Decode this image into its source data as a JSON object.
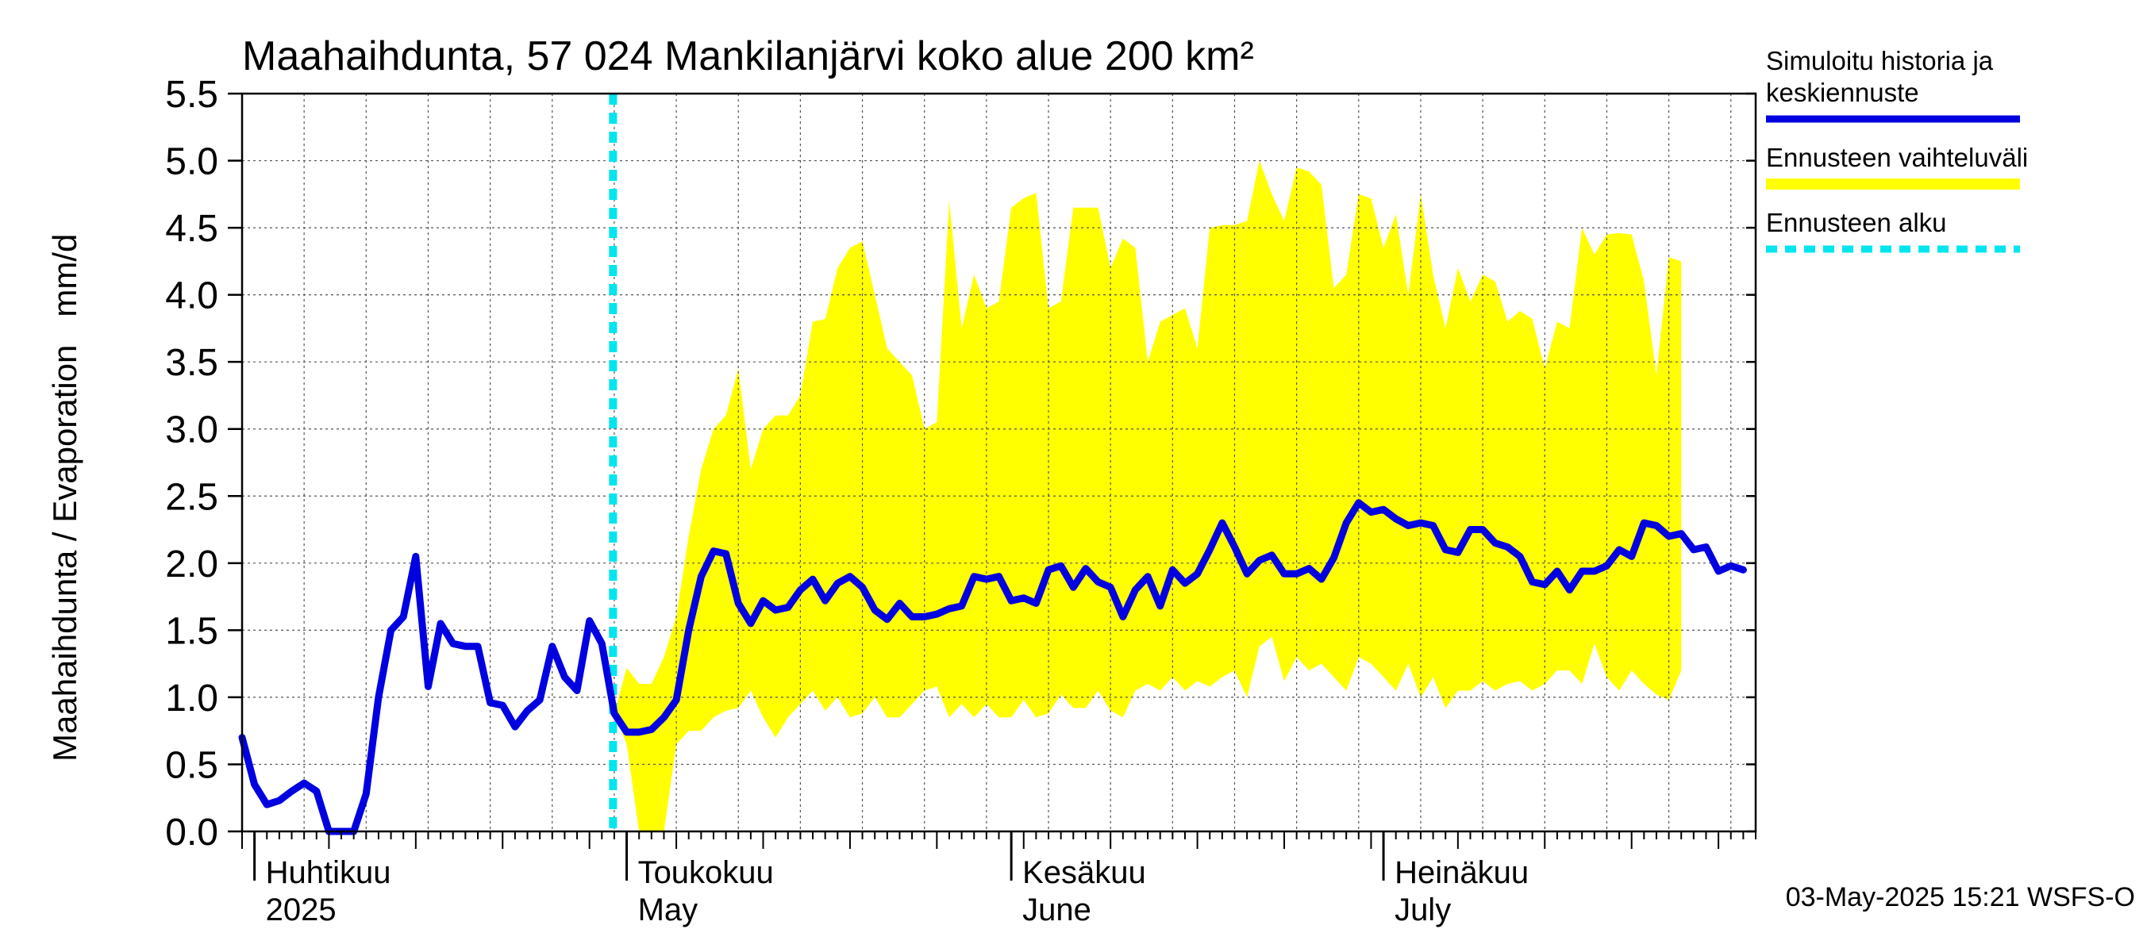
{
  "chart_data": {
    "type": "area",
    "title": "Maahaihdunta, 57 024 Mankilanjärvi koko alue 200 km²",
    "ylabel": "Maahaihdunta / Evaporation   mm/d",
    "ylim": [
      0,
      5.5
    ],
    "yticks": [
      "0.0",
      "0.5",
      "1.0",
      "1.5",
      "2.0",
      "2.5",
      "3.0",
      "3.5",
      "4.0",
      "4.5",
      "5.0",
      "5.5"
    ],
    "x_start": "2025-03-31",
    "x_end": "2025-07-31",
    "month_labels": [
      {
        "date": "2025-04-01",
        "fi": "Huhtikuu",
        "en": "2025"
      },
      {
        "date": "2025-05-01",
        "fi": "Toukokuu",
        "en": "May"
      },
      {
        "date": "2025-06-01",
        "fi": "Kesäkuu",
        "en": "June"
      },
      {
        "date": "2025-07-01",
        "fi": "Heinäkuu",
        "en": "July"
      }
    ],
    "grid": true,
    "legend_position": "right",
    "forecast_start": "2025-04-30",
    "series": [
      {
        "name": "Simuloitu historia ja keskiennuste",
        "color": "#0000e0",
        "start_date": "2025-03-31",
        "values": [
          0.7,
          0.35,
          0.2,
          0.23,
          0.3,
          0.36,
          0.3,
          0.0,
          0.0,
          0.0,
          0.28,
          1.0,
          1.5,
          1.6,
          2.05,
          1.08,
          1.55,
          1.4,
          1.38,
          1.38,
          0.96,
          0.94,
          0.78,
          0.9,
          0.98,
          1.38,
          1.15,
          1.05,
          1.57,
          1.4,
          0.88,
          0.74,
          0.74,
          0.76,
          0.85,
          0.98,
          1.5,
          1.9,
          2.09,
          2.07,
          1.7,
          1.55,
          1.72,
          1.65,
          1.67,
          1.8,
          1.88,
          1.72,
          1.85,
          1.9,
          1.82,
          1.65,
          1.58,
          1.7,
          1.6,
          1.6,
          1.62,
          1.66,
          1.68,
          1.9,
          1.88,
          1.9,
          1.72,
          1.74,
          1.7,
          1.95,
          1.98,
          1.82,
          1.96,
          1.86,
          1.82,
          1.6,
          1.8,
          1.9,
          1.68,
          1.95,
          1.85,
          1.92,
          2.1,
          2.3,
          2.12,
          1.92,
          2.02,
          2.06,
          1.92,
          1.92,
          1.96,
          1.88,
          2.04,
          2.3,
          2.45,
          2.38,
          2.4,
          2.33,
          2.28,
          2.3,
          2.28,
          2.1,
          2.08,
          2.25,
          2.25,
          2.15,
          2.12,
          2.05,
          1.86,
          1.84,
          1.94,
          1.8,
          1.94,
          1.94,
          1.98,
          2.1,
          2.05,
          2.3,
          2.28,
          2.2,
          2.22,
          2.1,
          2.12,
          1.94,
          1.98,
          1.95
        ]
      },
      {
        "name": "Ennusteen vaihteluväli",
        "color": "#ffff00",
        "start_date": "2025-04-30",
        "upper": [
          0.88,
          1.22,
          1.1,
          1.1,
          1.3,
          1.6,
          2.2,
          2.7,
          3.0,
          3.1,
          3.45,
          2.7,
          3.0,
          3.1,
          3.1,
          3.25,
          3.8,
          3.82,
          4.2,
          4.35,
          4.4,
          4.0,
          3.6,
          3.5,
          3.4,
          3.0,
          3.05,
          4.7,
          3.75,
          4.15,
          3.9,
          3.95,
          4.65,
          4.72,
          4.76,
          3.9,
          3.95,
          4.65,
          4.65,
          4.65,
          4.2,
          4.42,
          4.35,
          3.5,
          3.8,
          3.85,
          3.9,
          3.6,
          4.5,
          4.52,
          4.52,
          4.55,
          5.0,
          4.75,
          4.55,
          4.95,
          4.92,
          4.82,
          4.05,
          4.15,
          4.75,
          4.72,
          4.35,
          4.6,
          4.0,
          4.75,
          4.15,
          3.75,
          4.2,
          3.95,
          4.15,
          4.1,
          3.8,
          3.88,
          3.82,
          3.45,
          3.8,
          3.75,
          4.5,
          4.3,
          4.45,
          4.46,
          4.45,
          4.1,
          3.4,
          4.28,
          4.25
        ],
        "lower": [
          0.88,
          0.65,
          0.0,
          0.0,
          0.0,
          0.65,
          0.75,
          0.75,
          0.85,
          0.9,
          0.92,
          1.05,
          0.85,
          0.7,
          0.85,
          0.95,
          1.05,
          0.9,
          1.0,
          0.85,
          0.88,
          1.0,
          0.85,
          0.85,
          0.95,
          1.05,
          1.08,
          0.85,
          0.95,
          0.85,
          0.95,
          0.85,
          0.85,
          0.98,
          0.85,
          0.88,
          1.02,
          0.92,
          0.92,
          1.05,
          0.9,
          0.85,
          1.05,
          1.1,
          1.05,
          1.15,
          1.05,
          1.12,
          1.08,
          1.15,
          1.2,
          1.0,
          1.38,
          1.45,
          1.12,
          1.3,
          1.2,
          1.25,
          1.15,
          1.05,
          1.3,
          1.25,
          1.15,
          1.05,
          1.25,
          1.0,
          1.15,
          0.92,
          1.05,
          1.05,
          1.12,
          1.05,
          1.1,
          1.12,
          1.05,
          1.1,
          1.2,
          1.2,
          1.1,
          1.4,
          1.15,
          1.05,
          1.2,
          1.1,
          1.02,
          0.98,
          1.2
        ]
      },
      {
        "name": "Ennusteen alku",
        "color": "#00e5ee"
      }
    ],
    "timestamp": "03-May-2025 15:21 WSFS-O"
  }
}
